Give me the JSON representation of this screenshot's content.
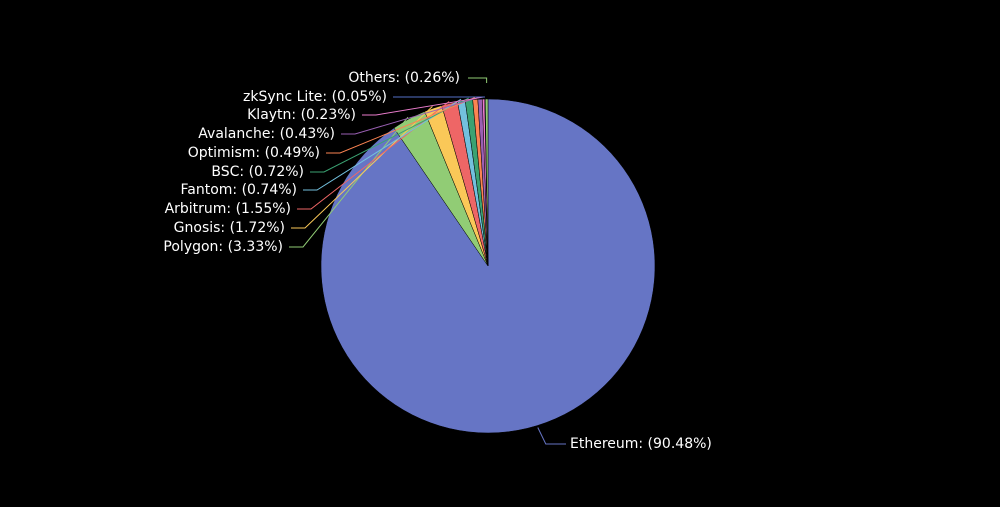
{
  "chart_data": {
    "type": "pie",
    "values": [
      90.48,
      3.33,
      1.72,
      1.55,
      0.74,
      0.72,
      0.49,
      0.43,
      0.23,
      0.05,
      0.26
    ],
    "value_labels": [
      "Ethereum: (90.48%)",
      "Polygon: (3.33%)",
      "Gnosis: (1.72%)",
      "Arbitrum: (1.55%)",
      "Fantom: (0.74%)",
      "BSC: (0.72%)",
      "Optimism: (0.49%)",
      "Avalanche: (0.43%)",
      "Klaytn: (0.23%)",
      "zkSync Lite: (0.05%)",
      "Others: (0.26%)"
    ],
    "colors": [
      "#6675c5",
      "#91cc75",
      "#fac858",
      "#ee6666",
      "#73c0de",
      "#3ba272",
      "#fc8452",
      "#9a60b4",
      "#ea7ccc",
      "#5470c6",
      "#91cc75"
    ]
  }
}
